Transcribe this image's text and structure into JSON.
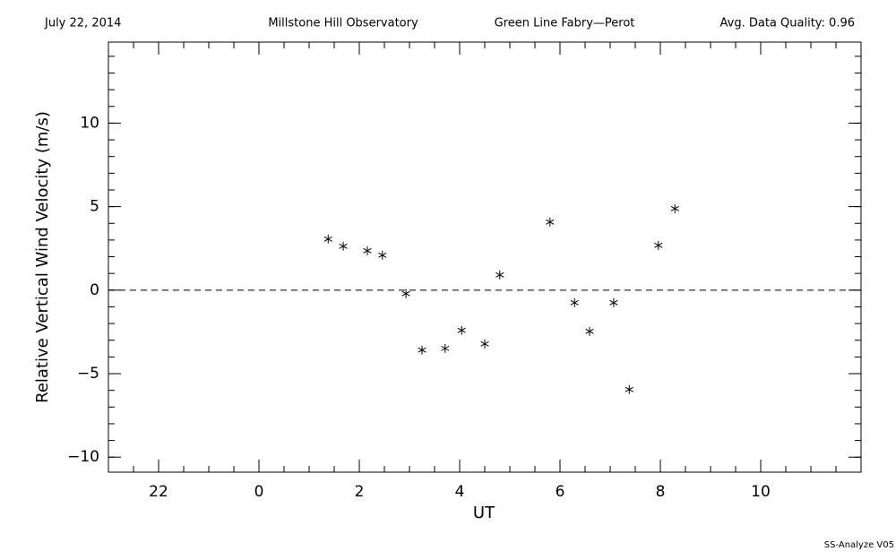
{
  "chart_data": {
    "type": "scatter",
    "header": [
      "July 22, 2014",
      "Millstone Hill Observatory",
      "Green Line Fabry—Perot",
      "Avg. Data Quality: 0.96"
    ],
    "ylabel": "Relative Vertical Wind Velocity (m/s)",
    "xlabel": "UT",
    "footer": "SS-Analyze V05",
    "xlim": [
      -3,
      12
    ],
    "ylim": [
      -10.9,
      14.85
    ],
    "xticks": [
      {
        "value": -2,
        "label": "22"
      },
      0,
      2,
      4,
      6,
      8,
      10
    ],
    "yticks": [
      {
        "value": -10,
        "label": "−10"
      },
      {
        "value": -5,
        "label": "−5"
      },
      0,
      5,
      10
    ],
    "xminor_step": 0.5,
    "yminor_step": 1,
    "hline": 0,
    "series": [
      {
        "color": "#e00000",
        "x": [
          1.38,
          1.68,
          2.16,
          2.46,
          2.93,
          3.25,
          3.71,
          4.04,
          4.5,
          4.8,
          5.8,
          6.29,
          6.59,
          7.07,
          7.38,
          7.96,
          8.29
        ],
        "values": [
          3.06,
          2.63,
          2.36,
          2.09,
          -0.21,
          -3.59,
          -3.49,
          -2.41,
          -3.22,
          0.91,
          4.08,
          -0.75,
          -2.47,
          -0.75,
          -5.95,
          2.68,
          4.88
        ]
      }
    ]
  }
}
